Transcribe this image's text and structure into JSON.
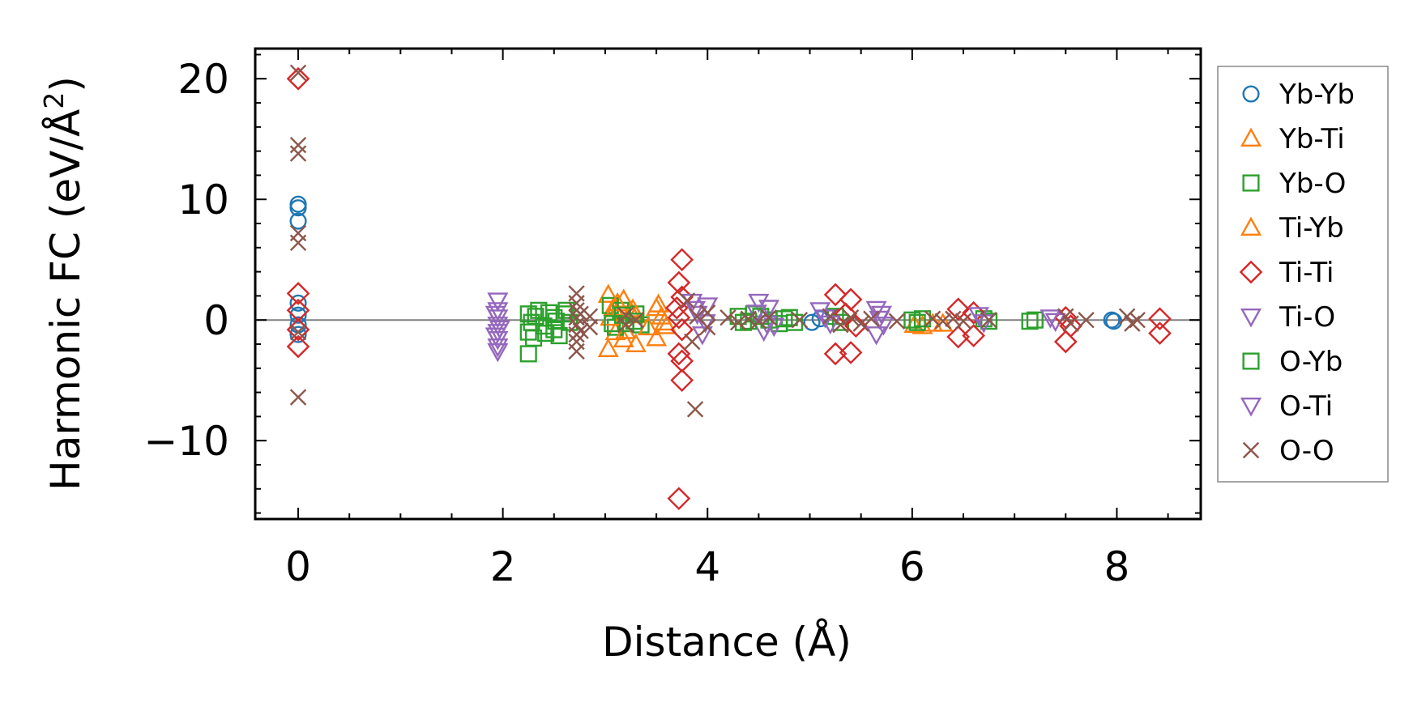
{
  "chart_data": {
    "type": "scatter",
    "title": "",
    "xlabel": "Distance (Å)",
    "ylabel_main": "Harmonic FC (eV/Å",
    "ylabel_sup": "2",
    "ylabel_close": ")",
    "xlim": [
      -0.42,
      8.82
    ],
    "ylim": [
      -16.5,
      22.5
    ],
    "xticks": [
      0,
      2,
      4,
      6,
      8
    ],
    "xtick_labels": [
      "0",
      "2",
      "4",
      "6",
      "8"
    ],
    "yticks": [
      -10,
      0,
      10,
      20
    ],
    "ytick_labels": [
      "−10",
      "0",
      "10",
      "20"
    ],
    "grid": false,
    "zero_line": true,
    "legend_position": "outside-right",
    "series": [
      {
        "name": "Yb-Yb",
        "marker": "circle",
        "color": "#1f77b4",
        "points": [
          [
            0,
            9.6
          ],
          [
            0,
            9.3
          ],
          [
            0,
            8.2
          ],
          [
            0,
            1.4
          ],
          [
            0,
            0.4
          ],
          [
            0,
            -0.4
          ],
          [
            0,
            -1.2
          ],
          [
            5.02,
            -0.2
          ],
          [
            5.1,
            0.1
          ],
          [
            7.95,
            0.0
          ],
          [
            7.97,
            -0.1
          ]
        ]
      },
      {
        "name": "Yb-Ti",
        "marker": "triangle-up",
        "color": "#ff7f0e",
        "points": [
          [
            3.03,
            2.1
          ],
          [
            3.03,
            -2.4
          ],
          [
            3.08,
            1.0
          ],
          [
            3.1,
            -1.0
          ],
          [
            3.18,
            1.7
          ],
          [
            3.18,
            -1.6
          ],
          [
            3.25,
            0.7
          ],
          [
            3.3,
            -2.0
          ],
          [
            3.3,
            0.4
          ],
          [
            3.5,
            -1.5
          ],
          [
            3.5,
            1.0
          ],
          [
            3.55,
            0.3
          ],
          [
            3.6,
            -0.5
          ],
          [
            6.02,
            -0.4
          ],
          [
            6.1,
            -0.5
          ],
          [
            6.2,
            -0.3
          ],
          [
            6.3,
            -0.3
          ]
        ]
      },
      {
        "name": "Yb-O",
        "marker": "square",
        "color": "#2ca02c",
        "points": [
          [
            2.25,
            -2.8
          ],
          [
            2.25,
            -1.0
          ],
          [
            2.25,
            0.5
          ],
          [
            2.3,
            -1.5
          ],
          [
            2.32,
            0.3
          ],
          [
            2.4,
            -0.5
          ],
          [
            2.45,
            0.6
          ],
          [
            2.5,
            -0.8
          ],
          [
            2.5,
            0.2
          ],
          [
            2.55,
            -1.3
          ],
          [
            2.6,
            0.5
          ],
          [
            2.65,
            -0.2
          ],
          [
            3.05,
            1.2
          ],
          [
            3.1,
            -0.6
          ],
          [
            3.15,
            0.8
          ],
          [
            3.2,
            -0.3
          ],
          [
            3.3,
            0.5
          ],
          [
            3.35,
            -0.4
          ],
          [
            4.3,
            0.3
          ],
          [
            4.35,
            -0.2
          ],
          [
            4.45,
            0.5
          ],
          [
            4.6,
            0.0
          ],
          [
            4.7,
            -0.3
          ],
          [
            4.8,
            0.2
          ],
          [
            4.85,
            -0.2
          ],
          [
            5.25,
            0.3
          ],
          [
            5.3,
            -0.2
          ],
          [
            6.0,
            0.0
          ],
          [
            6.05,
            -0.2
          ],
          [
            6.7,
            0.1
          ],
          [
            6.75,
            -0.1
          ],
          [
            7.2,
            0.0
          ]
        ]
      },
      {
        "name": "Ti-Yb",
        "marker": "triangle-up",
        "color": "#ff7f0e",
        "points": [
          [
            3.05,
            0.2
          ],
          [
            3.12,
            1.4
          ],
          [
            3.2,
            -0.9
          ],
          [
            3.27,
            0.9
          ],
          [
            3.42,
            -0.6
          ],
          [
            3.52,
            1.3
          ],
          [
            3.58,
            -0.2
          ]
        ]
      },
      {
        "name": "Ti-Ti",
        "marker": "diamond",
        "color": "#d62728",
        "points": [
          [
            0,
            20.0
          ],
          [
            0,
            2.2
          ],
          [
            0,
            0.8
          ],
          [
            0,
            -0.8
          ],
          [
            0,
            -2.2
          ],
          [
            3.75,
            5.0
          ],
          [
            3.72,
            3.1
          ],
          [
            3.75,
            1.9
          ],
          [
            3.7,
            1.0
          ],
          [
            3.72,
            0.2
          ],
          [
            3.75,
            -0.8
          ],
          [
            3.72,
            -2.8
          ],
          [
            3.75,
            -3.4
          ],
          [
            3.75,
            -5.0
          ],
          [
            3.72,
            -14.8
          ],
          [
            5.25,
            2.1
          ],
          [
            5.25,
            -2.8
          ],
          [
            5.4,
            1.7
          ],
          [
            5.4,
            -2.7
          ],
          [
            5.35,
            0.5
          ],
          [
            5.45,
            -0.5
          ],
          [
            6.45,
            0.9
          ],
          [
            6.45,
            -1.4
          ],
          [
            6.6,
            0.6
          ],
          [
            6.6,
            -1.3
          ],
          [
            7.5,
            0.2
          ],
          [
            7.5,
            -1.8
          ],
          [
            7.55,
            -0.5
          ],
          [
            8.42,
            0.1
          ],
          [
            8.42,
            -1.1
          ]
        ]
      },
      {
        "name": "Ti-O",
        "marker": "triangle-down",
        "color": "#9467bd",
        "points": [
          [
            1.95,
            1.6
          ],
          [
            1.95,
            0.8
          ],
          [
            1.95,
            0.2
          ],
          [
            1.95,
            -0.4
          ],
          [
            1.95,
            -1.0
          ],
          [
            1.95,
            -1.6
          ],
          [
            1.95,
            -2.2
          ],
          [
            1.95,
            -2.6
          ],
          [
            3.85,
            1.5
          ],
          [
            3.9,
            0.5
          ],
          [
            3.95,
            -1.2
          ],
          [
            4.0,
            1.2
          ],
          [
            4.5,
            1.5
          ],
          [
            4.55,
            -0.9
          ],
          [
            4.6,
            1.0
          ],
          [
            4.65,
            -0.5
          ],
          [
            5.1,
            0.8
          ],
          [
            5.2,
            -0.3
          ],
          [
            5.65,
            0.9
          ],
          [
            5.65,
            -1.2
          ],
          [
            5.7,
            0.5
          ],
          [
            5.72,
            -0.4
          ],
          [
            6.65,
            0.4
          ],
          [
            6.7,
            -0.2
          ],
          [
            7.35,
            0.2
          ],
          [
            7.4,
            -0.1
          ]
        ]
      },
      {
        "name": "O-Yb",
        "marker": "square",
        "color": "#2ca02c",
        "points": [
          [
            2.28,
            -0.2
          ],
          [
            2.35,
            0.8
          ],
          [
            2.42,
            -1.1
          ],
          [
            2.52,
            -0.1
          ],
          [
            2.62,
            0.8
          ],
          [
            3.07,
            -0.3
          ],
          [
            3.17,
            0.4
          ],
          [
            3.28,
            -0.1
          ],
          [
            4.4,
            -0.1
          ],
          [
            4.52,
            0.3
          ],
          [
            4.75,
            0.1
          ],
          [
            6.1,
            0.1
          ],
          [
            7.15,
            -0.1
          ]
        ]
      },
      {
        "name": "O-Ti",
        "marker": "triangle-down",
        "color": "#9467bd",
        "points": [
          [
            1.93,
            0.5
          ],
          [
            1.97,
            -0.7
          ],
          [
            1.93,
            -1.3
          ],
          [
            3.88,
            0.9
          ],
          [
            3.98,
            -0.2
          ],
          [
            4.48,
            0.6
          ],
          [
            4.58,
            -0.3
          ],
          [
            5.15,
            0.2
          ],
          [
            5.68,
            0.1
          ]
        ]
      },
      {
        "name": "O-O",
        "marker": "x",
        "color": "#8c564b",
        "points": [
          [
            0,
            20.5
          ],
          [
            0,
            14.5
          ],
          [
            0,
            13.8
          ],
          [
            0,
            7.2
          ],
          [
            0,
            6.4
          ],
          [
            0,
            -6.4
          ],
          [
            0,
            -1.0
          ],
          [
            2.72,
            2.2
          ],
          [
            2.72,
            1.4
          ],
          [
            2.72,
            0.8
          ],
          [
            2.72,
            0.2
          ],
          [
            2.72,
            -0.4
          ],
          [
            2.72,
            -1.2
          ],
          [
            2.72,
            -1.8
          ],
          [
            2.72,
            -2.6
          ],
          [
            2.76,
            0.5
          ],
          [
            2.76,
            -0.9
          ],
          [
            2.85,
            0.3
          ],
          [
            2.85,
            -0.6
          ],
          [
            3.2,
            0.4
          ],
          [
            3.2,
            -0.4
          ],
          [
            3.3,
            0.0
          ],
          [
            3.8,
            1.6
          ],
          [
            3.85,
            -1.8
          ],
          [
            3.88,
            -7.4
          ],
          [
            3.9,
            0.3
          ],
          [
            4.0,
            0.6
          ],
          [
            4.0,
            -0.6
          ],
          [
            4.2,
            0.2
          ],
          [
            4.3,
            -0.2
          ],
          [
            4.4,
            0.1
          ],
          [
            4.5,
            -0.1
          ],
          [
            4.6,
            0.2
          ],
          [
            4.9,
            0.0
          ],
          [
            5.2,
            0.3
          ],
          [
            5.3,
            -0.4
          ],
          [
            5.4,
            0.2
          ],
          [
            5.5,
            -0.3
          ],
          [
            5.6,
            0.1
          ],
          [
            5.85,
            -0.1
          ],
          [
            6.2,
            0.1
          ],
          [
            6.3,
            -0.1
          ],
          [
            6.4,
            0.1
          ],
          [
            6.5,
            -0.1
          ],
          [
            6.75,
            0.0
          ],
          [
            7.5,
            0.3
          ],
          [
            7.55,
            -0.3
          ],
          [
            7.7,
            0.0
          ],
          [
            8.1,
            0.3
          ],
          [
            8.15,
            -0.3
          ],
          [
            8.2,
            0.0
          ]
        ]
      }
    ]
  }
}
